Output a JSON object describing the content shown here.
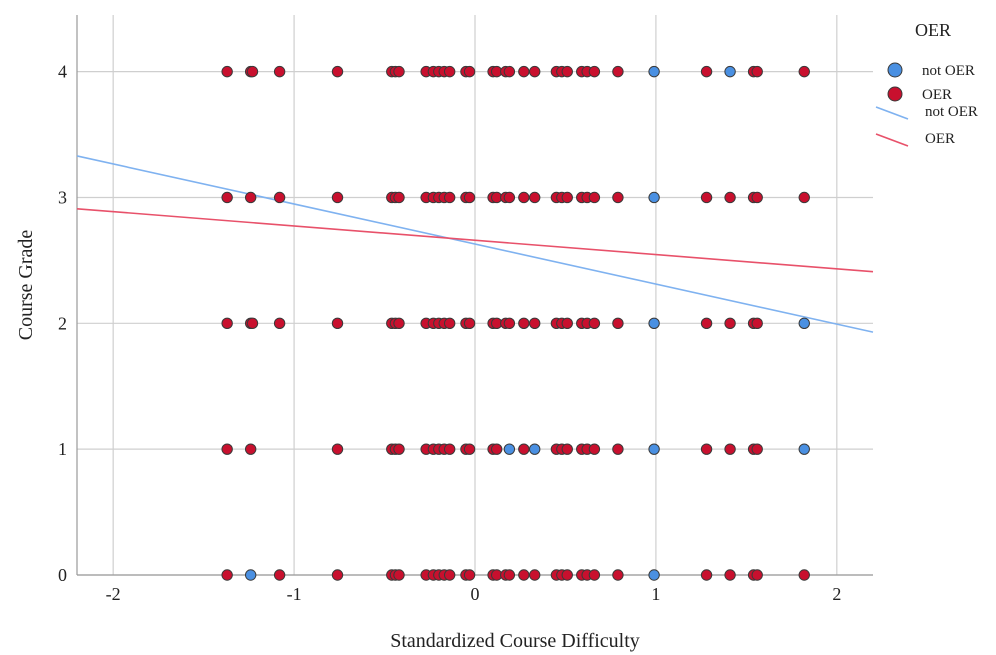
{
  "chart_data": {
    "type": "scatter",
    "title": "",
    "xlabel": "Standardized Course Difficulty",
    "ylabel": "Course Grade",
    "xlim": [
      -2.2,
      2.2
    ],
    "ylim": [
      0,
      4.45
    ],
    "x_ticks": [
      -2,
      -1,
      0,
      1,
      2
    ],
    "y_ticks": [
      0,
      1,
      2,
      3,
      4
    ],
    "grid": true,
    "legend": {
      "title": "OER",
      "position": "right",
      "items": [
        {
          "label": "not OER",
          "kind": "marker",
          "color": "#4a90e2"
        },
        {
          "label": "OER",
          "kind": "marker",
          "color": "#c8102e"
        },
        {
          "label": "not OER",
          "kind": "line",
          "color": "#7fb2f0"
        },
        {
          "label": "OER",
          "kind": "line",
          "color": "#e8516a"
        }
      ]
    },
    "series": [
      {
        "name": "not OER",
        "kind": "scatter",
        "color": "#4a90e2",
        "points": [
          {
            "x": 0.99,
            "y": 4
          },
          {
            "x": 1.41,
            "y": 4
          },
          {
            "x": 0.99,
            "y": 3
          },
          {
            "x": 0.99,
            "y": 2
          },
          {
            "x": 1.82,
            "y": 2
          },
          {
            "x": 0.19,
            "y": 1
          },
          {
            "x": 0.33,
            "y": 1
          },
          {
            "x": 0.99,
            "y": 1
          },
          {
            "x": 1.82,
            "y": 1
          },
          {
            "x": -1.24,
            "y": 0
          },
          {
            "x": 0.99,
            "y": 0
          }
        ]
      },
      {
        "name": "OER",
        "kind": "scatter",
        "color": "#c8102e",
        "points": [
          {
            "x": -1.37,
            "y": 4
          },
          {
            "x": -1.24,
            "y": 4
          },
          {
            "x": -1.23,
            "y": 4
          },
          {
            "x": -1.08,
            "y": 4
          },
          {
            "x": -0.76,
            "y": 4
          },
          {
            "x": -0.46,
            "y": 4
          },
          {
            "x": -0.44,
            "y": 4
          },
          {
            "x": -0.42,
            "y": 4
          },
          {
            "x": -0.27,
            "y": 4
          },
          {
            "x": -0.23,
            "y": 4
          },
          {
            "x": -0.2,
            "y": 4
          },
          {
            "x": -0.17,
            "y": 4
          },
          {
            "x": -0.14,
            "y": 4
          },
          {
            "x": -0.05,
            "y": 4
          },
          {
            "x": -0.03,
            "y": 4
          },
          {
            "x": 0.1,
            "y": 4
          },
          {
            "x": 0.12,
            "y": 4
          },
          {
            "x": 0.17,
            "y": 4
          },
          {
            "x": 0.19,
            "y": 4
          },
          {
            "x": 0.27,
            "y": 4
          },
          {
            "x": 0.33,
            "y": 4
          },
          {
            "x": 0.45,
            "y": 4
          },
          {
            "x": 0.48,
            "y": 4
          },
          {
            "x": 0.51,
            "y": 4
          },
          {
            "x": 0.59,
            "y": 4
          },
          {
            "x": 0.62,
            "y": 4
          },
          {
            "x": 0.66,
            "y": 4
          },
          {
            "x": 0.79,
            "y": 4
          },
          {
            "x": 1.28,
            "y": 4
          },
          {
            "x": 1.54,
            "y": 4
          },
          {
            "x": 1.56,
            "y": 4
          },
          {
            "x": 1.82,
            "y": 4
          },
          {
            "x": -1.37,
            "y": 3
          },
          {
            "x": -1.24,
            "y": 3
          },
          {
            "x": -1.08,
            "y": 3
          },
          {
            "x": -0.76,
            "y": 3
          },
          {
            "x": -0.46,
            "y": 3
          },
          {
            "x": -0.44,
            "y": 3
          },
          {
            "x": -0.42,
            "y": 3
          },
          {
            "x": -0.27,
            "y": 3
          },
          {
            "x": -0.23,
            "y": 3
          },
          {
            "x": -0.2,
            "y": 3
          },
          {
            "x": -0.17,
            "y": 3
          },
          {
            "x": -0.14,
            "y": 3
          },
          {
            "x": -0.05,
            "y": 3
          },
          {
            "x": -0.03,
            "y": 3
          },
          {
            "x": 0.1,
            "y": 3
          },
          {
            "x": 0.12,
            "y": 3
          },
          {
            "x": 0.17,
            "y": 3
          },
          {
            "x": 0.19,
            "y": 3
          },
          {
            "x": 0.27,
            "y": 3
          },
          {
            "x": 0.33,
            "y": 3
          },
          {
            "x": 0.45,
            "y": 3
          },
          {
            "x": 0.48,
            "y": 3
          },
          {
            "x": 0.51,
            "y": 3
          },
          {
            "x": 0.59,
            "y": 3
          },
          {
            "x": 0.62,
            "y": 3
          },
          {
            "x": 0.66,
            "y": 3
          },
          {
            "x": 0.79,
            "y": 3
          },
          {
            "x": 1.28,
            "y": 3
          },
          {
            "x": 1.41,
            "y": 3
          },
          {
            "x": 1.54,
            "y": 3
          },
          {
            "x": 1.56,
            "y": 3
          },
          {
            "x": 1.82,
            "y": 3
          },
          {
            "x": -1.37,
            "y": 2
          },
          {
            "x": -1.24,
            "y": 2
          },
          {
            "x": -1.23,
            "y": 2
          },
          {
            "x": -1.08,
            "y": 2
          },
          {
            "x": -0.76,
            "y": 2
          },
          {
            "x": -0.46,
            "y": 2
          },
          {
            "x": -0.44,
            "y": 2
          },
          {
            "x": -0.42,
            "y": 2
          },
          {
            "x": -0.27,
            "y": 2
          },
          {
            "x": -0.23,
            "y": 2
          },
          {
            "x": -0.2,
            "y": 2
          },
          {
            "x": -0.17,
            "y": 2
          },
          {
            "x": -0.14,
            "y": 2
          },
          {
            "x": -0.05,
            "y": 2
          },
          {
            "x": -0.03,
            "y": 2
          },
          {
            "x": 0.1,
            "y": 2
          },
          {
            "x": 0.12,
            "y": 2
          },
          {
            "x": 0.17,
            "y": 2
          },
          {
            "x": 0.19,
            "y": 2
          },
          {
            "x": 0.27,
            "y": 2
          },
          {
            "x": 0.33,
            "y": 2
          },
          {
            "x": 0.45,
            "y": 2
          },
          {
            "x": 0.48,
            "y": 2
          },
          {
            "x": 0.51,
            "y": 2
          },
          {
            "x": 0.59,
            "y": 2
          },
          {
            "x": 0.62,
            "y": 2
          },
          {
            "x": 0.66,
            "y": 2
          },
          {
            "x": 0.79,
            "y": 2
          },
          {
            "x": 1.28,
            "y": 2
          },
          {
            "x": 1.41,
            "y": 2
          },
          {
            "x": 1.54,
            "y": 2
          },
          {
            "x": 1.56,
            "y": 2
          },
          {
            "x": -1.37,
            "y": 1
          },
          {
            "x": -1.24,
            "y": 1
          },
          {
            "x": -0.76,
            "y": 1
          },
          {
            "x": -0.46,
            "y": 1
          },
          {
            "x": -0.44,
            "y": 1
          },
          {
            "x": -0.42,
            "y": 1
          },
          {
            "x": -0.27,
            "y": 1
          },
          {
            "x": -0.23,
            "y": 1
          },
          {
            "x": -0.2,
            "y": 1
          },
          {
            "x": -0.17,
            "y": 1
          },
          {
            "x": -0.14,
            "y": 1
          },
          {
            "x": -0.05,
            "y": 1
          },
          {
            "x": -0.03,
            "y": 1
          },
          {
            "x": 0.1,
            "y": 1
          },
          {
            "x": 0.12,
            "y": 1
          },
          {
            "x": 0.27,
            "y": 1
          },
          {
            "x": 0.45,
            "y": 1
          },
          {
            "x": 0.48,
            "y": 1
          },
          {
            "x": 0.51,
            "y": 1
          },
          {
            "x": 0.59,
            "y": 1
          },
          {
            "x": 0.62,
            "y": 1
          },
          {
            "x": 0.66,
            "y": 1
          },
          {
            "x": 0.79,
            "y": 1
          },
          {
            "x": 1.28,
            "y": 1
          },
          {
            "x": 1.41,
            "y": 1
          },
          {
            "x": 1.54,
            "y": 1
          },
          {
            "x": 1.56,
            "y": 1
          },
          {
            "x": -1.37,
            "y": 0
          },
          {
            "x": -1.08,
            "y": 0
          },
          {
            "x": -0.76,
            "y": 0
          },
          {
            "x": -0.46,
            "y": 0
          },
          {
            "x": -0.44,
            "y": 0
          },
          {
            "x": -0.42,
            "y": 0
          },
          {
            "x": -0.27,
            "y": 0
          },
          {
            "x": -0.23,
            "y": 0
          },
          {
            "x": -0.2,
            "y": 0
          },
          {
            "x": -0.17,
            "y": 0
          },
          {
            "x": -0.14,
            "y": 0
          },
          {
            "x": -0.05,
            "y": 0
          },
          {
            "x": -0.03,
            "y": 0
          },
          {
            "x": 0.1,
            "y": 0
          },
          {
            "x": 0.12,
            "y": 0
          },
          {
            "x": 0.17,
            "y": 0
          },
          {
            "x": 0.19,
            "y": 0
          },
          {
            "x": 0.27,
            "y": 0
          },
          {
            "x": 0.33,
            "y": 0
          },
          {
            "x": 0.45,
            "y": 0
          },
          {
            "x": 0.48,
            "y": 0
          },
          {
            "x": 0.51,
            "y": 0
          },
          {
            "x": 0.59,
            "y": 0
          },
          {
            "x": 0.62,
            "y": 0
          },
          {
            "x": 0.66,
            "y": 0
          },
          {
            "x": 0.79,
            "y": 0
          },
          {
            "x": 1.28,
            "y": 0
          },
          {
            "x": 1.41,
            "y": 0
          },
          {
            "x": 1.54,
            "y": 0
          },
          {
            "x": 1.56,
            "y": 0
          },
          {
            "x": 1.82,
            "y": 0
          }
        ]
      },
      {
        "name": "not OER",
        "kind": "fit-line",
        "color": "#7fb2f0",
        "points": [
          {
            "x": -2.2,
            "y": 3.33
          },
          {
            "x": 2.2,
            "y": 1.93
          }
        ]
      },
      {
        "name": "OER",
        "kind": "fit-line",
        "color": "#e8516a",
        "points": [
          {
            "x": -2.2,
            "y": 2.91
          },
          {
            "x": 2.2,
            "y": 2.41
          }
        ]
      }
    ]
  }
}
